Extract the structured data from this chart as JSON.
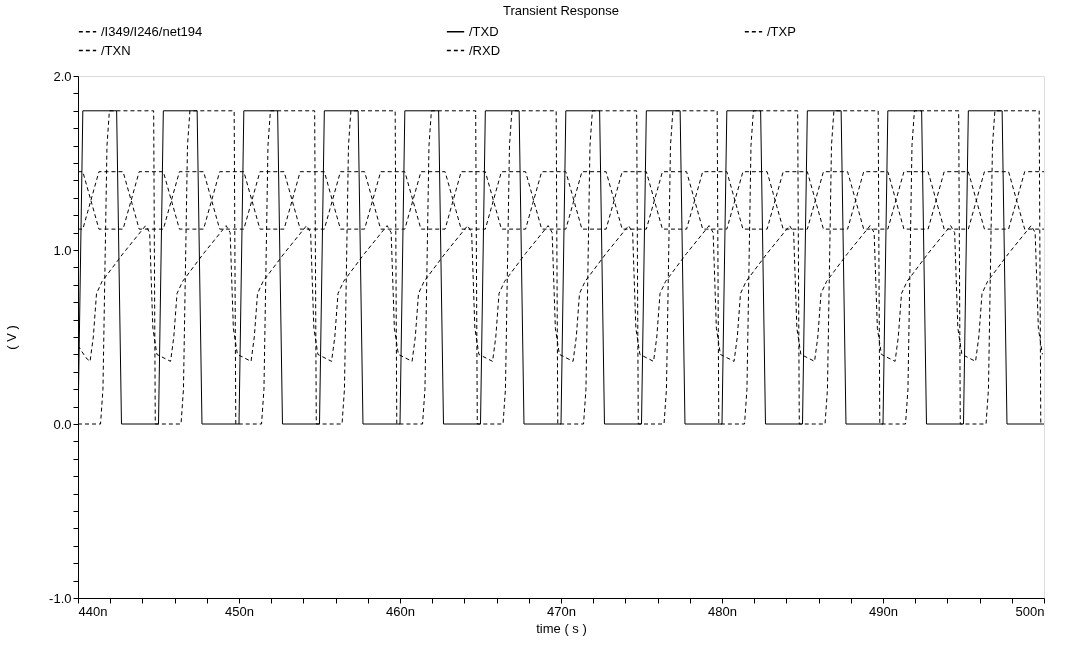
{
  "chart_data": {
    "type": "line",
    "title": "Transient Response",
    "xlabel": "time ( s )",
    "ylabel": "( V )",
    "legend": "top",
    "grid": false,
    "marker": "none",
    "xlim": [
      440,
      500
    ],
    "ylim": [
      -1,
      2
    ],
    "xticks": [
      {
        "value": 440,
        "label": "440n"
      },
      {
        "value": 442,
        "label": null
      },
      {
        "value": 444,
        "label": null
      },
      {
        "value": 446,
        "label": null
      },
      {
        "value": 448,
        "label": null
      },
      {
        "value": 450,
        "label": "450n"
      },
      {
        "value": 452,
        "label": null
      },
      {
        "value": 454,
        "label": null
      },
      {
        "value": 456,
        "label": null
      },
      {
        "value": 458,
        "label": null
      },
      {
        "value": 460,
        "label": "460n"
      },
      {
        "value": 462,
        "label": null
      },
      {
        "value": 464,
        "label": null
      },
      {
        "value": 466,
        "label": null
      },
      {
        "value": 468,
        "label": null
      },
      {
        "value": 470,
        "label": "470n"
      },
      {
        "value": 472,
        "label": null
      },
      {
        "value": 474,
        "label": null
      },
      {
        "value": 476,
        "label": null
      },
      {
        "value": 478,
        "label": null
      },
      {
        "value": 480,
        "label": "480n"
      },
      {
        "value": 482,
        "label": null
      },
      {
        "value": 484,
        "label": null
      },
      {
        "value": 486,
        "label": null
      },
      {
        "value": 488,
        "label": null
      },
      {
        "value": 490,
        "label": "490n"
      },
      {
        "value": 492,
        "label": null
      },
      {
        "value": 494,
        "label": null
      },
      {
        "value": 496,
        "label": null
      },
      {
        "value": 498,
        "label": null
      },
      {
        "value": 500,
        "label": "500n"
      }
    ],
    "yticks": [
      {
        "value": -1,
        "label": "-1.0"
      },
      {
        "value": -0.9,
        "label": null
      },
      {
        "value": -0.8,
        "label": null
      },
      {
        "value": -0.7,
        "label": null
      },
      {
        "value": -0.6,
        "label": null
      },
      {
        "value": -0.5,
        "label": null
      },
      {
        "value": -0.4,
        "label": null
      },
      {
        "value": -0.3,
        "label": null
      },
      {
        "value": -0.2,
        "label": null
      },
      {
        "value": -0.1,
        "label": null
      },
      {
        "value": 0,
        "label": "0.0"
      },
      {
        "value": 0.1,
        "label": null
      },
      {
        "value": 0.2,
        "label": null
      },
      {
        "value": 0.3,
        "label": null
      },
      {
        "value": 0.4,
        "label": null
      },
      {
        "value": 0.5,
        "label": null
      },
      {
        "value": 0.6,
        "label": null
      },
      {
        "value": 0.7,
        "label": null
      },
      {
        "value": 0.8,
        "label": null
      },
      {
        "value": 0.9,
        "label": null
      },
      {
        "value": 1,
        "label": "1.0"
      },
      {
        "value": 1.1,
        "label": null
      },
      {
        "value": 1.2,
        "label": null
      },
      {
        "value": 1.3,
        "label": null
      },
      {
        "value": 1.4,
        "label": null
      },
      {
        "value": 1.5,
        "label": null
      },
      {
        "value": 1.6,
        "label": null
      },
      {
        "value": 1.7,
        "label": null
      },
      {
        "value": 1.8,
        "label": null
      },
      {
        "value": 1.9,
        "label": null
      },
      {
        "value": 2,
        "label": "2.0"
      }
    ],
    "series": [
      {
        "name": "/I349/I246/net194",
        "color": "#000000",
        "line_style": "dashed",
        "x": [
          440,
          440.5,
          440.75,
          440.95,
          441.15,
          441.5,
          442.8,
          444.2,
          444.45,
          444.65,
          444.9,
          445.75,
          445.95,
          446.15,
          446.5,
          447.8,
          449.2,
          449.45,
          449.65,
          449.9,
          450.75,
          450.95,
          451.15,
          451.5,
          452.8,
          454.2,
          454.45,
          454.65,
          454.9,
          455.75,
          455.95,
          456.15,
          456.5,
          457.8,
          459.2,
          459.45,
          459.65,
          459.9,
          460.75,
          460.95,
          461.15,
          461.5,
          462.8,
          464.2,
          464.45,
          464.65,
          464.9,
          465.75,
          465.95,
          466.15,
          466.5,
          467.8,
          469.2,
          469.45,
          469.65,
          469.9,
          470.75,
          470.95,
          471.15,
          471.5,
          472.8,
          474.2,
          474.45,
          474.65,
          474.9,
          475.75,
          475.95,
          476.15,
          476.5,
          477.8,
          479.2,
          479.45,
          479.65,
          479.9,
          480.75,
          480.95,
          481.15,
          481.5,
          482.8,
          484.2,
          484.45,
          484.65,
          484.9,
          485.75,
          485.95,
          486.15,
          486.5,
          487.8,
          489.2,
          489.45,
          489.65,
          489.9,
          490.75,
          490.95,
          491.15,
          491.5,
          492.8,
          494.2,
          494.45,
          494.65,
          494.9,
          495.75,
          495.95,
          496.15,
          496.5,
          497.8,
          499.2,
          499.45,
          499.65,
          499.9
        ],
        "values": [
          0.45,
          0.38,
          0.36,
          0.5,
          0.75,
          0.82,
          0.98,
          1.14,
          1.1,
          0.55,
          0.4,
          0.36,
          0.5,
          0.75,
          0.82,
          0.98,
          1.14,
          1.1,
          0.55,
          0.4,
          0.36,
          0.5,
          0.75,
          0.82,
          0.98,
          1.14,
          1.1,
          0.55,
          0.4,
          0.36,
          0.5,
          0.75,
          0.82,
          0.98,
          1.14,
          1.1,
          0.55,
          0.4,
          0.36,
          0.5,
          0.75,
          0.82,
          0.98,
          1.14,
          1.1,
          0.55,
          0.4,
          0.36,
          0.5,
          0.75,
          0.82,
          0.98,
          1.14,
          1.1,
          0.55,
          0.4,
          0.36,
          0.5,
          0.75,
          0.82,
          0.98,
          1.14,
          1.1,
          0.55,
          0.4,
          0.36,
          0.5,
          0.75,
          0.82,
          0.98,
          1.14,
          1.1,
          0.55,
          0.4,
          0.36,
          0.5,
          0.75,
          0.82,
          0.98,
          1.14,
          1.1,
          0.55,
          0.4,
          0.36,
          0.5,
          0.75,
          0.82,
          0.98,
          1.14,
          1.1,
          0.55,
          0.4,
          0.36,
          0.5,
          0.75,
          0.82,
          0.98,
          1.14,
          1.1,
          0.55,
          0.4,
          0.36,
          0.5,
          0.75,
          0.82,
          0.98,
          1.14,
          1.1,
          0.55,
          0.4
        ]
      },
      {
        "name": "/TXD",
        "color": "#000000",
        "line_style": "solid",
        "x": [
          440,
          440.3,
          442.4,
          442.7,
          445,
          445.3,
          447.4,
          447.7,
          450,
          450.3,
          452.4,
          452.7,
          455,
          455.3,
          457.4,
          457.7,
          460,
          460.3,
          462.4,
          462.7,
          465,
          465.3,
          467.4,
          467.7,
          470,
          470.3,
          472.4,
          472.7,
          475,
          475.3,
          477.4,
          477.7,
          480,
          480.3,
          482.4,
          482.7,
          485,
          485.3,
          487.4,
          487.7,
          490,
          490.3,
          492.4,
          492.7,
          495,
          495.3,
          497.4,
          497.7,
          500
        ],
        "values": [
          0,
          1.8,
          1.8,
          0,
          0,
          1.8,
          1.8,
          0,
          0,
          1.8,
          1.8,
          0,
          0,
          1.8,
          1.8,
          0,
          0,
          1.8,
          1.8,
          0,
          0,
          1.8,
          1.8,
          0,
          0,
          1.8,
          1.8,
          0,
          0,
          1.8,
          1.8,
          0,
          0,
          1.8,
          1.8,
          0,
          0,
          1.8,
          1.8,
          0,
          0,
          1.8,
          1.8,
          0,
          0,
          1.8,
          1.8,
          0,
          0
        ]
      },
      {
        "name": "/TXP",
        "color": "#000000",
        "line_style": "dashed",
        "x": [
          440,
          440.3,
          441.3,
          442.8,
          443.8,
          445.3,
          446.3,
          447.8,
          448.8,
          450.3,
          451.3,
          452.8,
          453.8,
          455.3,
          456.3,
          457.8,
          458.8,
          460.3,
          461.3,
          462.8,
          463.8,
          465.3,
          466.3,
          467.8,
          468.8,
          470.3,
          471.3,
          472.8,
          473.8,
          475.3,
          476.3,
          477.8,
          478.8,
          480.3,
          481.3,
          482.8,
          483.8,
          485.3,
          486.3,
          487.8,
          488.8,
          490.3,
          491.3,
          492.8,
          493.8,
          495.3,
          496.3,
          497.8,
          498.8,
          500
        ],
        "values": [
          1.45,
          1.45,
          1.12,
          1.12,
          1.45,
          1.45,
          1.12,
          1.12,
          1.45,
          1.45,
          1.12,
          1.12,
          1.45,
          1.45,
          1.12,
          1.12,
          1.45,
          1.45,
          1.12,
          1.12,
          1.45,
          1.45,
          1.12,
          1.12,
          1.45,
          1.45,
          1.12,
          1.12,
          1.45,
          1.45,
          1.12,
          1.12,
          1.45,
          1.45,
          1.12,
          1.12,
          1.45,
          1.45,
          1.12,
          1.12,
          1.45,
          1.45,
          1.12,
          1.12,
          1.45,
          1.45,
          1.12,
          1.12,
          1.45,
          1.45
        ]
      },
      {
        "name": "/TXN",
        "color": "#000000",
        "line_style": "dashed",
        "x": [
          440,
          440.3,
          441.3,
          442.8,
          443.8,
          445.3,
          446.3,
          447.8,
          448.8,
          450.3,
          451.3,
          452.8,
          453.8,
          455.3,
          456.3,
          457.8,
          458.8,
          460.3,
          461.3,
          462.8,
          463.8,
          465.3,
          466.3,
          467.8,
          468.8,
          470.3,
          471.3,
          472.8,
          473.8,
          475.3,
          476.3,
          477.8,
          478.8,
          480.3,
          481.3,
          482.8,
          483.8,
          485.3,
          486.3,
          487.8,
          488.8,
          490.3,
          491.3,
          492.8,
          493.8,
          495.3,
          496.3,
          497.8,
          498.8,
          500
        ],
        "values": [
          1.12,
          1.12,
          1.45,
          1.45,
          1.12,
          1.12,
          1.45,
          1.45,
          1.12,
          1.12,
          1.45,
          1.45,
          1.12,
          1.12,
          1.45,
          1.45,
          1.12,
          1.12,
          1.45,
          1.45,
          1.12,
          1.12,
          1.45,
          1.45,
          1.12,
          1.12,
          1.45,
          1.45,
          1.12,
          1.12,
          1.45,
          1.45,
          1.12,
          1.12,
          1.45,
          1.45,
          1.12,
          1.12,
          1.45,
          1.45,
          1.12,
          1.12,
          1.45,
          1.45,
          1.12,
          1.12,
          1.45,
          1.45,
          1.12,
          1.12
        ]
      },
      {
        "name": "/RXD",
        "color": "#000000",
        "line_style": "dashed",
        "x": [
          440,
          441.4,
          441.55,
          441.8,
          441.95,
          444.7,
          444.8,
          446.4,
          446.55,
          446.8,
          446.95,
          449.7,
          449.8,
          451.4,
          451.55,
          451.8,
          451.95,
          454.7,
          454.8,
          456.4,
          456.55,
          456.8,
          456.95,
          459.7,
          459.8,
          461.4,
          461.55,
          461.8,
          461.95,
          464.7,
          464.8,
          466.4,
          466.55,
          466.8,
          466.95,
          469.7,
          469.8,
          471.4,
          471.55,
          471.8,
          471.95,
          474.7,
          474.8,
          476.4,
          476.55,
          476.8,
          476.95,
          479.7,
          479.8,
          481.4,
          481.55,
          481.8,
          481.95,
          484.7,
          484.8,
          486.4,
          486.55,
          486.8,
          486.95,
          489.7,
          489.8,
          491.4,
          491.55,
          491.8,
          491.95,
          494.7,
          494.8,
          496.4,
          496.55,
          496.8,
          496.95,
          499.7,
          499.8
        ],
        "values": [
          0,
          0,
          0.2,
          1.6,
          1.8,
          1.8,
          0,
          0,
          0.2,
          1.6,
          1.8,
          1.8,
          0,
          0,
          0.2,
          1.6,
          1.8,
          1.8,
          0,
          0,
          0.2,
          1.6,
          1.8,
          1.8,
          0,
          0,
          0.2,
          1.6,
          1.8,
          1.8,
          0,
          0,
          0.2,
          1.6,
          1.8,
          1.8,
          0,
          0,
          0.2,
          1.6,
          1.8,
          1.8,
          0,
          0,
          0.2,
          1.6,
          1.8,
          1.8,
          0,
          0,
          0.2,
          1.6,
          1.8,
          1.8,
          0,
          0,
          0.2,
          1.6,
          1.8,
          1.8,
          0,
          0,
          0.2,
          1.6,
          1.8,
          1.8,
          0,
          0,
          0.2,
          1.6,
          1.8,
          1.8,
          0
        ]
      }
    ]
  }
}
